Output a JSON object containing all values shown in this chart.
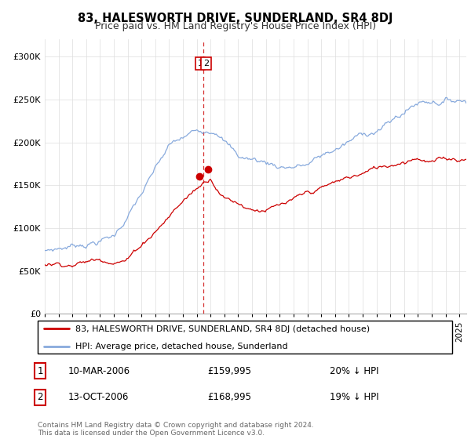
{
  "title": "83, HALESWORTH DRIVE, SUNDERLAND, SR4 8DJ",
  "subtitle": "Price paid vs. HM Land Registry's House Price Index (HPI)",
  "legend_line1": "83, HALESWORTH DRIVE, SUNDERLAND, SR4 8DJ (detached house)",
  "legend_line2": "HPI: Average price, detached house, Sunderland",
  "transaction1_date": "10-MAR-2006",
  "transaction1_price": "£159,995",
  "transaction1_hpi": "20% ↓ HPI",
  "transaction2_date": "13-OCT-2006",
  "transaction2_price": "£168,995",
  "transaction2_hpi": "19% ↓ HPI",
  "footnote": "Contains HM Land Registry data © Crown copyright and database right 2024.\nThis data is licensed under the Open Government Licence v3.0.",
  "line_color_red": "#cc0000",
  "line_color_blue": "#88aadd",
  "vline_color": "#cc0000",
  "grid_color": "#dddddd",
  "ylim": [
    0,
    320000
  ],
  "yticks": [
    0,
    50000,
    100000,
    150000,
    200000,
    250000,
    300000
  ],
  "xlim_start": 1995,
  "xlim_end": 2025.5,
  "t1_year": 2006.19,
  "t2_year": 2006.79,
  "t1_price": 159995,
  "t2_price": 168995,
  "vline_x": 2006.5
}
